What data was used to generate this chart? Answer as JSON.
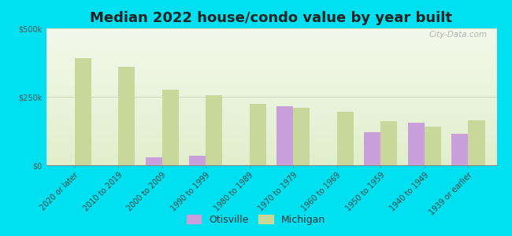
{
  "title": "Median 2022 house/condo value by year built",
  "categories": [
    "2020 or later",
    "2010 to 2019",
    "2000 to 2009",
    "1990 to 1999",
    "1980 to 1989",
    "1970 to 1979",
    "1960 to 1969",
    "1950 to 1959",
    "1940 to 1949",
    "1939 or earlier"
  ],
  "otisville_values": [
    null,
    null,
    30000,
    35000,
    null,
    215000,
    null,
    120000,
    155000,
    115000
  ],
  "michigan_values": [
    390000,
    360000,
    275000,
    255000,
    225000,
    210000,
    195000,
    160000,
    140000,
    165000
  ],
  "otisville_color": "#c9a0dc",
  "michigan_color": "#c8d89a",
  "background_outer": "#00e0f0",
  "ylim": [
    0,
    500000
  ],
  "ytick_labels": [
    "$0",
    "$250k",
    "$500k"
  ],
  "bar_width": 0.38,
  "title_fontsize": 13,
  "tick_fontsize": 7,
  "legend_labels": [
    "Otisville",
    "Michigan"
  ],
  "watermark": "City-Data.com"
}
